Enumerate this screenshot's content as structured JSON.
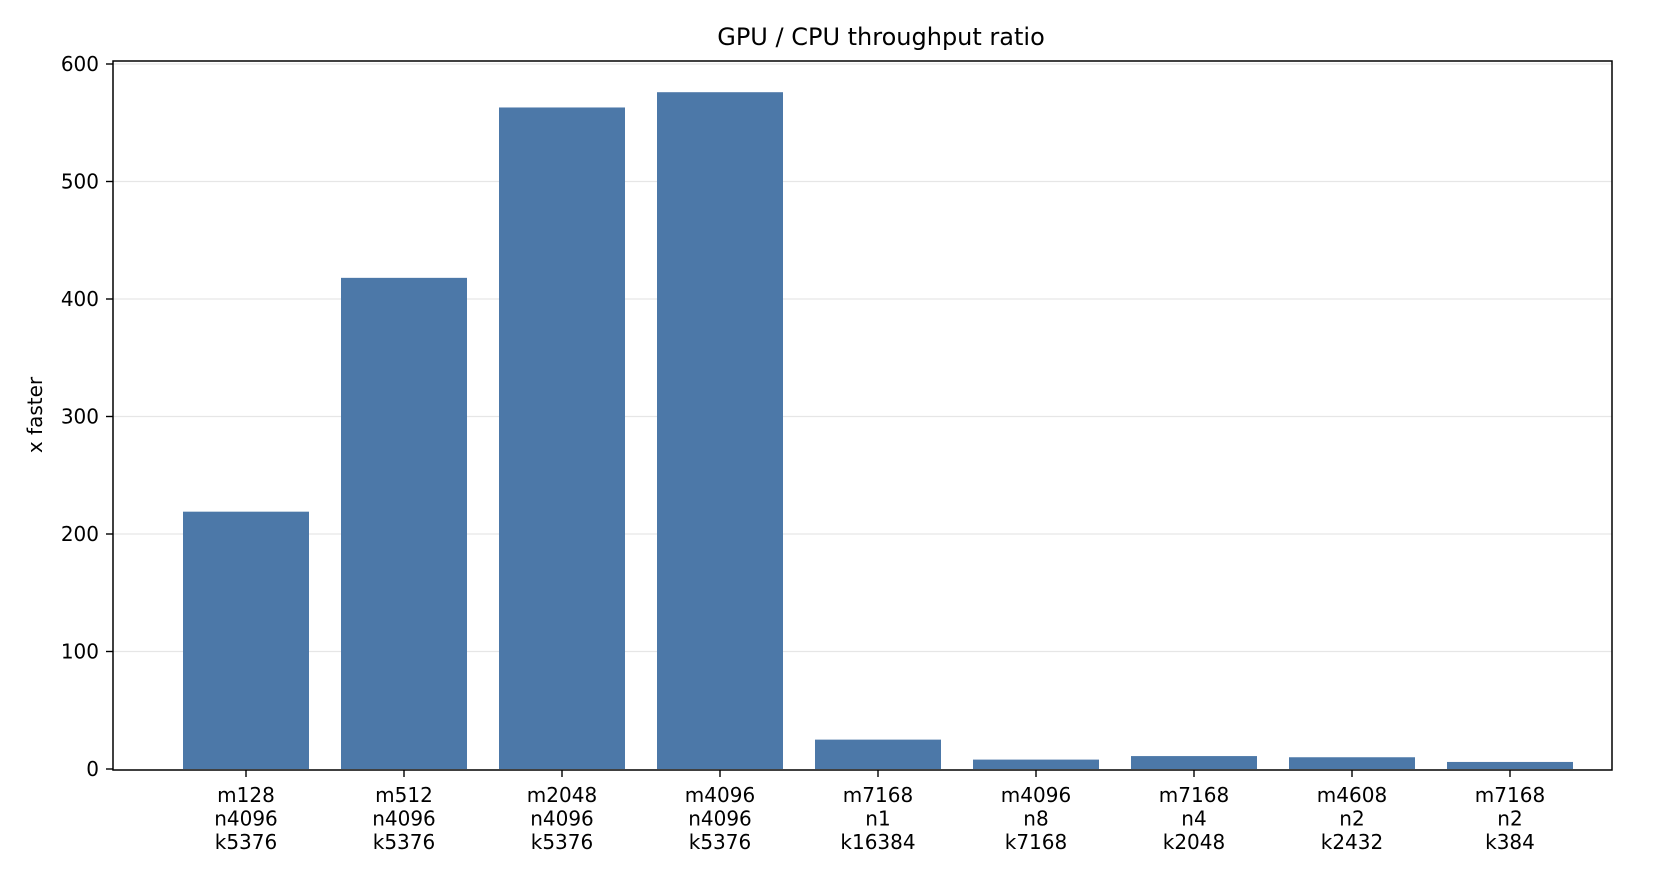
{
  "chart_data": {
    "type": "bar",
    "title": "GPU / CPU throughput ratio",
    "xlabel": "",
    "ylabel": "x faster",
    "categories": [
      [
        "m128",
        "n4096",
        "k5376"
      ],
      [
        "m512",
        "n4096",
        "k5376"
      ],
      [
        "m2048",
        "n4096",
        "k5376"
      ],
      [
        "m4096",
        "n4096",
        "k5376"
      ],
      [
        "m7168",
        "n1",
        "k16384"
      ],
      [
        "m4096",
        "n8",
        "k7168"
      ],
      [
        "m7168",
        "n4",
        "k2048"
      ],
      [
        "m4608",
        "n2",
        "k2432"
      ],
      [
        "m7168",
        "n2",
        "k384"
      ]
    ],
    "values": [
      219,
      418,
      563,
      576,
      25,
      8,
      11,
      10,
      6
    ],
    "ylim": [
      0,
      600
    ],
    "yticks": [
      0,
      100,
      200,
      300,
      400,
      500,
      600
    ],
    "grid": "horizontal",
    "bar_color": "#4c78a8"
  }
}
